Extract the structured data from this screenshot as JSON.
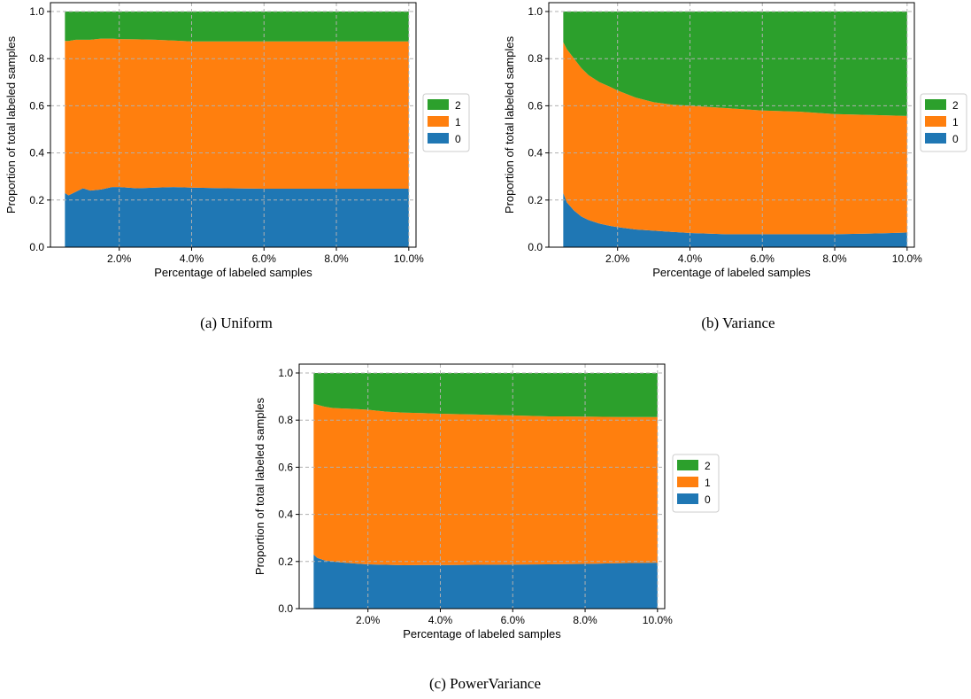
{
  "colors": {
    "0": "#1f77b4",
    "1": "#ff7f0e",
    "2": "#2ca02c"
  },
  "chart_data": [
    {
      "type": "area",
      "caption": "(a) Uniform",
      "xlabel": "Percentage of labeled samples",
      "ylabel": "Proportion of total labeled samples",
      "xlim": [
        0.1,
        10.2
      ],
      "ylim": [
        0,
        1.0
      ],
      "xticks": [
        2,
        4,
        6,
        8,
        10
      ],
      "xtick_labels": [
        "2.0%",
        "4.0%",
        "6.0%",
        "8.0%",
        "10.0%"
      ],
      "yticks": [
        0,
        0.2,
        0.4,
        0.6,
        0.8,
        1.0
      ],
      "ytick_labels": [
        "0.0",
        "0.2",
        "0.4",
        "0.6",
        "0.8",
        "1.0"
      ],
      "grid": true,
      "legend_position": "outside-right",
      "legend": [
        "2",
        "1",
        "0"
      ],
      "x": [
        0.5,
        0.6,
        0.8,
        1.0,
        1.2,
        1.5,
        1.8,
        2.0,
        2.5,
        3.0,
        3.5,
        4.0,
        5.0,
        6.0,
        7.0,
        8.0,
        9.0,
        10.0
      ],
      "series": [
        {
          "name": "0",
          "values": [
            0.23,
            0.22,
            0.235,
            0.25,
            0.24,
            0.245,
            0.255,
            0.255,
            0.25,
            0.253,
            0.255,
            0.253,
            0.25,
            0.248,
            0.248,
            0.248,
            0.248,
            0.248
          ]
        },
        {
          "name": "1",
          "values": [
            0.645,
            0.655,
            0.645,
            0.63,
            0.64,
            0.64,
            0.63,
            0.628,
            0.632,
            0.627,
            0.622,
            0.62,
            0.623,
            0.625,
            0.625,
            0.625,
            0.625,
            0.625
          ]
        },
        {
          "name": "2",
          "values": [
            0.125,
            0.125,
            0.12,
            0.12,
            0.12,
            0.115,
            0.115,
            0.117,
            0.118,
            0.12,
            0.123,
            0.127,
            0.127,
            0.127,
            0.127,
            0.127,
            0.127,
            0.127
          ]
        }
      ]
    },
    {
      "type": "area",
      "caption": "(b) Variance",
      "xlabel": "Percentage of labeled samples",
      "ylabel": "Proportion of total labeled samples",
      "xlim": [
        0.1,
        10.2
      ],
      "ylim": [
        0,
        1.0
      ],
      "xticks": [
        2,
        4,
        6,
        8,
        10
      ],
      "xtick_labels": [
        "2.0%",
        "4.0%",
        "6.0%",
        "8.0%",
        "10.0%"
      ],
      "yticks": [
        0,
        0.2,
        0.4,
        0.6,
        0.8,
        1.0
      ],
      "ytick_labels": [
        "0.0",
        "0.2",
        "0.4",
        "0.6",
        "0.8",
        "1.0"
      ],
      "grid": true,
      "legend_position": "outside-right",
      "legend": [
        "2",
        "1",
        "0"
      ],
      "x": [
        0.5,
        0.6,
        0.8,
        1.0,
        1.2,
        1.5,
        1.8,
        2.0,
        2.5,
        3.0,
        3.5,
        4.0,
        5.0,
        6.0,
        7.0,
        8.0,
        9.0,
        10.0
      ],
      "series": [
        {
          "name": "0",
          "values": [
            0.23,
            0.19,
            0.155,
            0.13,
            0.115,
            0.1,
            0.09,
            0.085,
            0.075,
            0.07,
            0.065,
            0.06,
            0.055,
            0.055,
            0.055,
            0.055,
            0.058,
            0.062
          ]
        },
        {
          "name": "1",
          "values": [
            0.64,
            0.65,
            0.645,
            0.63,
            0.615,
            0.6,
            0.59,
            0.58,
            0.56,
            0.545,
            0.54,
            0.54,
            0.535,
            0.525,
            0.52,
            0.51,
            0.503,
            0.495
          ]
        },
        {
          "name": "2",
          "values": [
            0.13,
            0.16,
            0.2,
            0.24,
            0.27,
            0.3,
            0.32,
            0.335,
            0.365,
            0.385,
            0.395,
            0.4,
            0.41,
            0.42,
            0.425,
            0.435,
            0.439,
            0.443
          ]
        }
      ]
    },
    {
      "type": "area",
      "caption": "(c) PowerVariance",
      "xlabel": "Percentage of labeled samples",
      "ylabel": "Proportion of total labeled samples",
      "xlim": [
        0.1,
        10.2
      ],
      "ylim": [
        0,
        1.0
      ],
      "xticks": [
        2,
        4,
        6,
        8,
        10
      ],
      "xtick_labels": [
        "2.0%",
        "4.0%",
        "6.0%",
        "8.0%",
        "10.0%"
      ],
      "yticks": [
        0,
        0.2,
        0.4,
        0.6,
        0.8,
        1.0
      ],
      "ytick_labels": [
        "0.0",
        "0.2",
        "0.4",
        "0.6",
        "0.8",
        "1.0"
      ],
      "grid": true,
      "legend_position": "outside-right",
      "legend": [
        "2",
        "1",
        "0"
      ],
      "x": [
        0.5,
        0.6,
        0.8,
        1.0,
        1.2,
        1.5,
        1.8,
        2.0,
        2.5,
        3.0,
        3.5,
        4.0,
        5.0,
        6.0,
        7.0,
        8.0,
        9.0,
        10.0
      ],
      "series": [
        {
          "name": "0",
          "values": [
            0.23,
            0.215,
            0.205,
            0.2,
            0.197,
            0.193,
            0.19,
            0.188,
            0.186,
            0.184,
            0.185,
            0.185,
            0.186,
            0.187,
            0.188,
            0.19,
            0.193,
            0.195
          ]
        },
        {
          "name": "1",
          "values": [
            0.64,
            0.65,
            0.652,
            0.652,
            0.653,
            0.655,
            0.656,
            0.656,
            0.65,
            0.648,
            0.645,
            0.642,
            0.638,
            0.633,
            0.628,
            0.625,
            0.62,
            0.618
          ]
        },
        {
          "name": "2",
          "values": [
            0.13,
            0.135,
            0.143,
            0.148,
            0.15,
            0.152,
            0.154,
            0.156,
            0.164,
            0.168,
            0.17,
            0.173,
            0.176,
            0.18,
            0.184,
            0.185,
            0.187,
            0.187
          ]
        }
      ]
    }
  ]
}
